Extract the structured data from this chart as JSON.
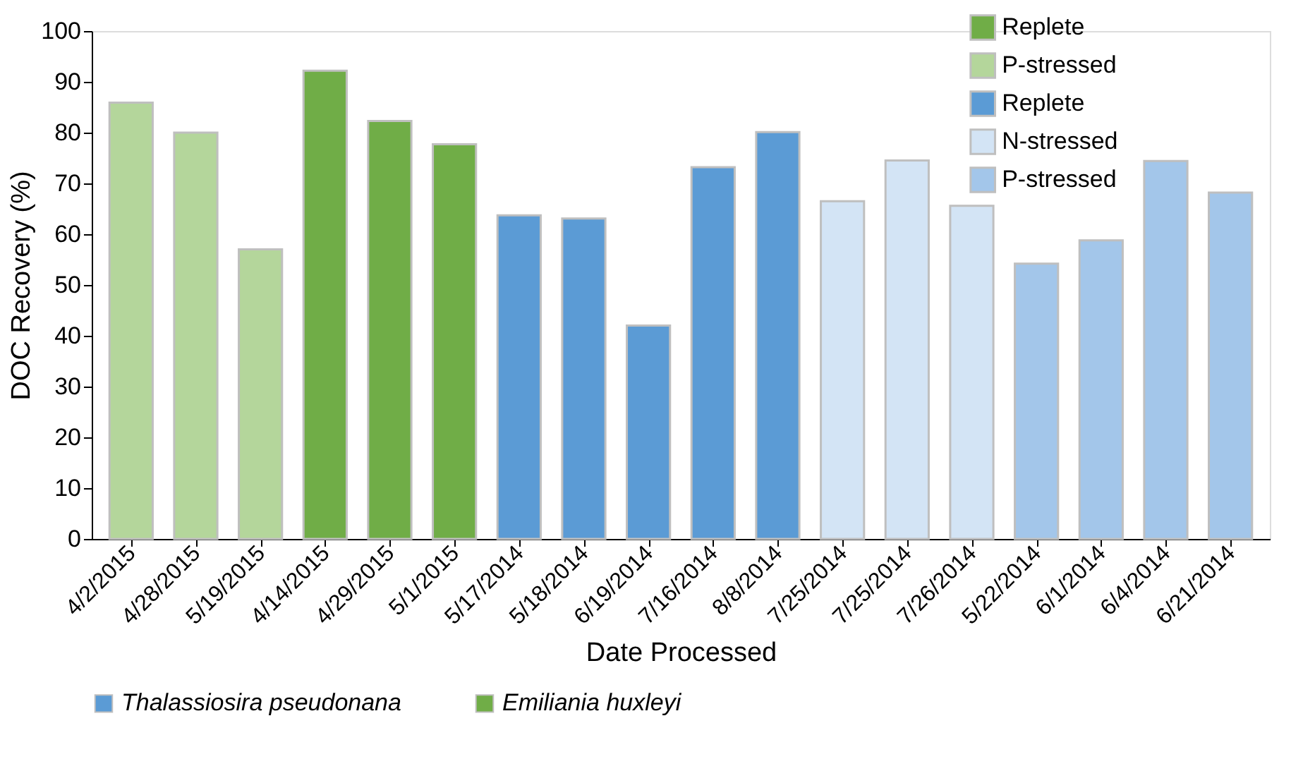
{
  "chart_data": {
    "type": "bar",
    "xlabel": "Date Processed",
    "ylabel": "DOC Recovery (%)",
    "categories": [
      "4/2/2015",
      "4/28/2015",
      "5/19/2015",
      "4/14/2015",
      "4/29/2015",
      "5/1/2015",
      "5/17/2014",
      "5/18/2014",
      "6/19/2014",
      "7/16/2014",
      "8/8/2014",
      "7/25/2014",
      "7/25/2014",
      "7/26/2014",
      "5/22/2014",
      "6/1/2014",
      "6/4/2014",
      "6/21/2014"
    ],
    "series": [
      {
        "name": "Replete",
        "color": "#70ad47",
        "values": [
          null,
          null,
          null,
          92.2,
          82.3,
          77.7,
          null,
          null,
          null,
          null,
          null,
          null,
          null,
          null,
          null,
          null,
          null,
          null
        ]
      },
      {
        "name": "P-stressed",
        "color": "#b4d69b",
        "values": [
          85.9,
          80,
          57,
          null,
          null,
          null,
          null,
          null,
          null,
          null,
          null,
          null,
          null,
          null,
          null,
          null,
          null,
          null
        ]
      },
      {
        "name": "Replete",
        "color": "#5b9bd5",
        "values": [
          null,
          null,
          null,
          null,
          null,
          null,
          63.7,
          63.1,
          42,
          73.2,
          80.1,
          null,
          null,
          null,
          null,
          null,
          null,
          null
        ]
      },
      {
        "name": "N-stressed",
        "color": "#d3e4f5",
        "values": [
          null,
          null,
          null,
          null,
          null,
          null,
          null,
          null,
          null,
          null,
          null,
          66.5,
          74.5,
          65.6,
          null,
          null,
          null,
          null
        ]
      },
      {
        "name": "P-stressed",
        "color": "#a3c6ea",
        "values": [
          null,
          null,
          null,
          null,
          null,
          null,
          null,
          null,
          null,
          null,
          null,
          null,
          null,
          null,
          54.2,
          58.8,
          74.4,
          68.2
        ]
      }
    ],
    "ylim": [
      0,
      100
    ],
    "yticks": [
      0,
      10,
      20,
      30,
      40,
      50,
      60,
      70,
      80,
      90,
      100
    ],
    "grid": false,
    "legend": "top right",
    "annotations": [
      "Thalassiosira pseudonana",
      "Emiliania huxleyi"
    ]
  }
}
